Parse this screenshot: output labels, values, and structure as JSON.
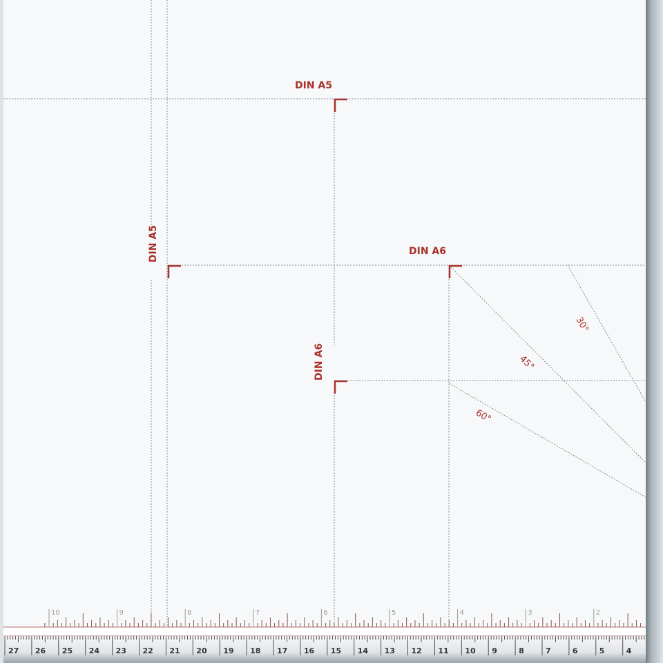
{
  "labels": {
    "din_a5_horizontal": "DIN A5",
    "din_a5_vertical": "DIN A5",
    "din_a6_horizontal": "DIN A6",
    "din_a6_vertical": "DIN A6",
    "angle_30": "30°",
    "angle_45": "45°",
    "angle_60": "60°"
  },
  "ruler": {
    "inch_labels": [
      "10",
      "9",
      "8",
      "7",
      "6",
      "5",
      "4",
      "3",
      "2"
    ],
    "cm_labels": [
      "27",
      "26",
      "25",
      "24",
      "23",
      "22",
      "21",
      "20",
      "19",
      "18",
      "17",
      "16",
      "15",
      "14",
      "13",
      "12",
      "11",
      "10",
      "9",
      "8",
      "7",
      "6",
      "5",
      "4"
    ]
  },
  "colors": {
    "accent": "#a8332c",
    "guide": "#888888",
    "rail": "#8f9aa3",
    "board": "#f7f8f9"
  }
}
